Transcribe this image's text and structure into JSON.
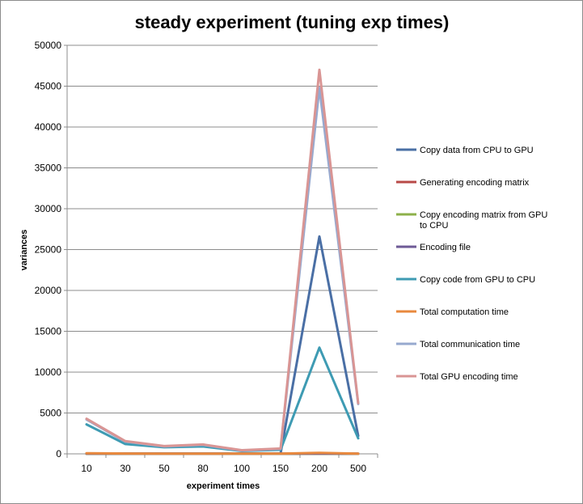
{
  "chart_data": {
    "type": "line",
    "title": "steady experiment (tuning exp times)",
    "xlabel": "experiment times",
    "ylabel": "variances",
    "categories": [
      "10",
      "30",
      "50",
      "80",
      "100",
      "150",
      "200",
      "500"
    ],
    "ylim": [
      0,
      50000
    ],
    "yticks": [
      "0",
      "5000",
      "10000",
      "15000",
      "20000",
      "25000",
      "30000",
      "35000",
      "40000",
      "45000",
      "50000"
    ],
    "grid": true,
    "legend_position": "right",
    "series": [
      {
        "name": "Copy data from CPU to GPU",
        "color": "#4a6fa5",
        "values": [
          50,
          50,
          40,
          40,
          30,
          50,
          26600,
          2200
        ]
      },
      {
        "name": "Generating encoding matrix",
        "color": "#b84a47",
        "values": [
          10,
          10,
          10,
          10,
          10,
          10,
          10,
          10
        ]
      },
      {
        "name": "Copy encoding matrix from GPU to CPU",
        "color": "#8db04a",
        "values": [
          5,
          5,
          5,
          5,
          5,
          5,
          5,
          5
        ]
      },
      {
        "name": "Encoding file",
        "color": "#6e5a96",
        "values": [
          20,
          20,
          20,
          20,
          20,
          20,
          20,
          20
        ]
      },
      {
        "name": "Copy code from GPU to CPU",
        "color": "#3e9bb3",
        "values": [
          3600,
          1200,
          800,
          900,
          350,
          500,
          13000,
          1900
        ]
      },
      {
        "name": "Total computation time",
        "color": "#e8893e",
        "values": [
          80,
          40,
          30,
          30,
          20,
          30,
          120,
          20
        ]
      },
      {
        "name": "Total communication time",
        "color": "#97a9cf",
        "values": [
          4200,
          1500,
          900,
          1100,
          400,
          600,
          44800,
          6100
        ]
      },
      {
        "name": "Total GPU encoding time",
        "color": "#d99594",
        "values": [
          4300,
          1550,
          950,
          1150,
          450,
          650,
          47000,
          6200
        ]
      }
    ]
  }
}
